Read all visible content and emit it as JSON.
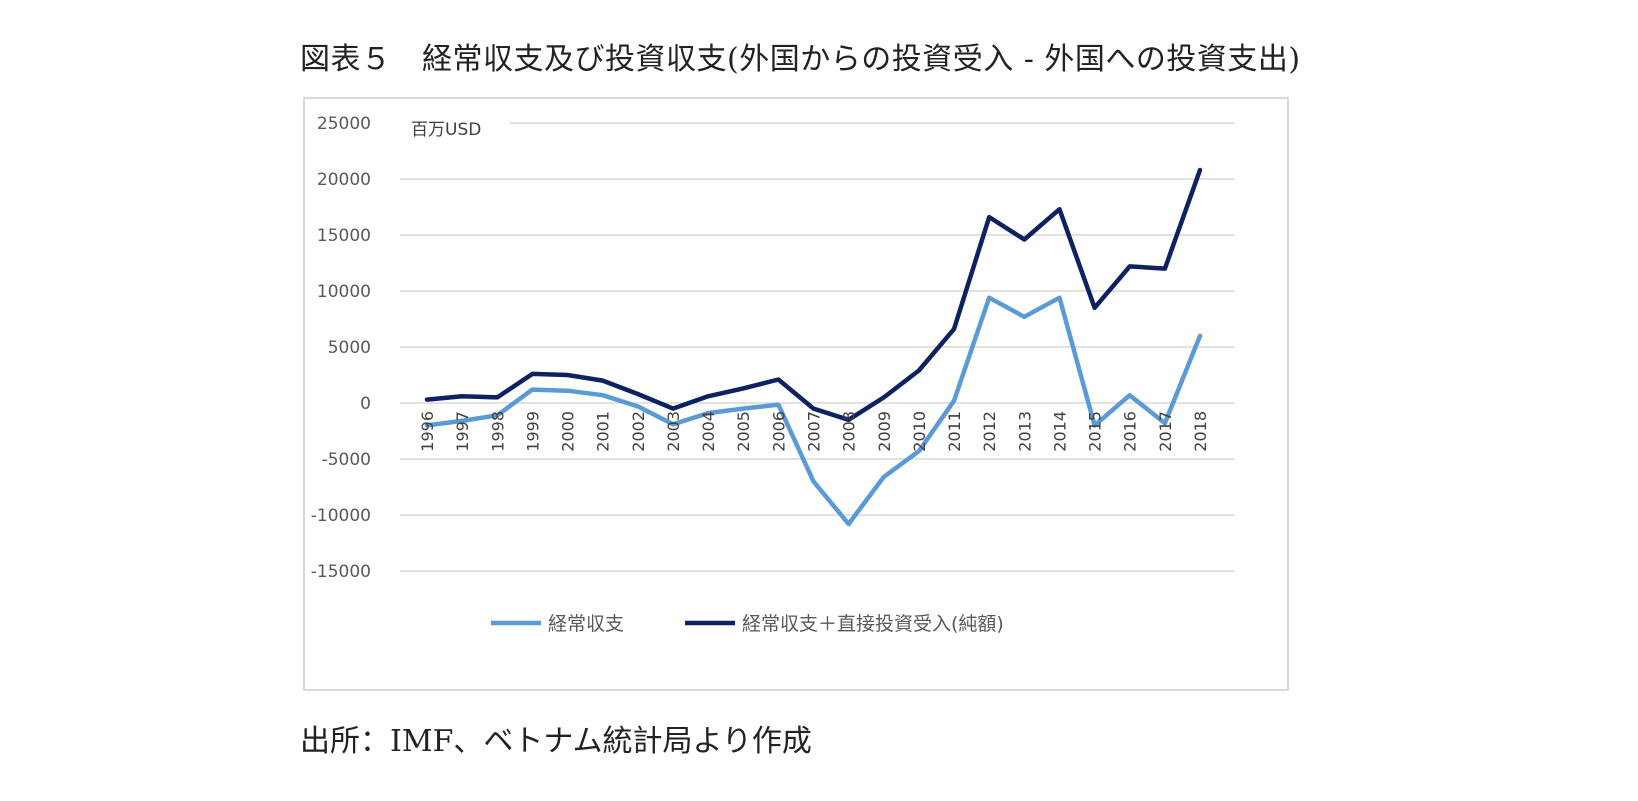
{
  "title": "図表５　経常収支及び投資収支(外国からの投資受入 - 外国への投資支出)",
  "source": "出所：IMF、ベトナム統計局より作成",
  "chart_data": {
    "type": "line",
    "unit_label": "百万USD",
    "x": [
      "1996",
      "1997",
      "1998",
      "1999",
      "2000",
      "2001",
      "2002",
      "2003",
      "2004",
      "2005",
      "2006",
      "2007",
      "2008",
      "2009",
      "2010",
      "2011",
      "2012",
      "2013",
      "2014",
      "2015",
      "2016",
      "2017",
      "2018"
    ],
    "ylim": [
      -15000,
      25000
    ],
    "yticks": [
      25000,
      20000,
      15000,
      10000,
      5000,
      0,
      -5000,
      -10000,
      -15000
    ],
    "ytick_labels": [
      "25000",
      "20000",
      "15000",
      "10000",
      "5000",
      "0",
      "-5000",
      "-10000",
      "-15000"
    ],
    "grid": true,
    "legend_position": "bottom",
    "series": [
      {
        "name": "経常収支",
        "color": "#5b9bd5",
        "values": [
          -2000,
          -1600,
          -1100,
          1200,
          1100,
          700,
          -300,
          -1900,
          -900,
          -500,
          -150,
          -7000,
          -10800,
          -6600,
          -4300,
          200,
          9400,
          7700,
          9400,
          -2000,
          700,
          -1800,
          6000
        ]
      },
      {
        "name": "経常収支＋直接投資受入(純額)",
        "color": "#0e2160",
        "values": [
          300,
          600,
          500,
          2600,
          2500,
          2000,
          800,
          -500,
          600,
          1300,
          2100,
          -500,
          -1500,
          500,
          2900,
          6600,
          16600,
          14600,
          17300,
          8500,
          12200,
          12000,
          20800
        ]
      }
    ]
  }
}
